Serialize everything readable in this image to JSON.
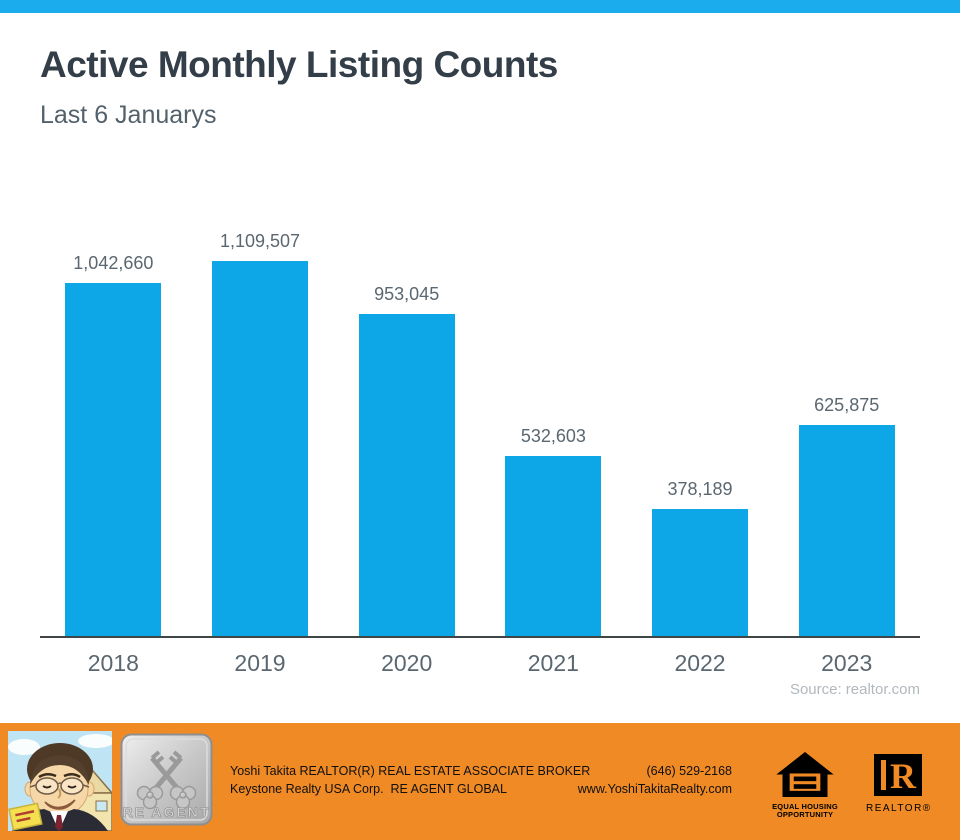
{
  "page": {
    "title": "Active Monthly Listing Counts",
    "subtitle": "Last 6 Januarys",
    "source": "Source: realtor.com"
  },
  "chart_data": {
    "type": "bar",
    "title": "Active Monthly Listing Counts",
    "subtitle": "Last 6 Januarys",
    "categories": [
      "2018",
      "2019",
      "2020",
      "2021",
      "2022",
      "2023"
    ],
    "values": [
      1042660,
      1109507,
      953045,
      532603,
      378189,
      625875
    ],
    "value_labels": [
      "1,042,660",
      "1,109,507",
      "953,045",
      "532,603",
      "378,189",
      "625,875"
    ],
    "xlabel": "",
    "ylabel": "",
    "ylim": [
      0,
      1200000
    ],
    "grid": false,
    "legend": false,
    "bar_color": "#0DA7E8",
    "annotation": "Source: realtor.com"
  },
  "footer": {
    "agent_line1": "Yoshi Takita REALTOR(R) REAL ESTATE ASSOCIATE BROKER",
    "agent_line2": "Keystone Realty USA Corp.  RE AGENT GLOBAL",
    "phone": "(646) 529-2168",
    "website": "www.YoshiTakitaRealty.com",
    "badge_label": "RE AGENT",
    "equal_housing_line1": "EQUAL HOUSING",
    "equal_housing_line2": "OPPORTUNITY",
    "realtor_label": "REALTOR®"
  },
  "colors": {
    "top_strip": "#1AACEC",
    "bar": "#0DA7E8",
    "footer_background": "#F08A25",
    "axis": "#404547",
    "title_text": "#333E48",
    "subtitle_text": "#52616B",
    "label_text": "#5B6770",
    "source_text": "#B2B8BD"
  }
}
